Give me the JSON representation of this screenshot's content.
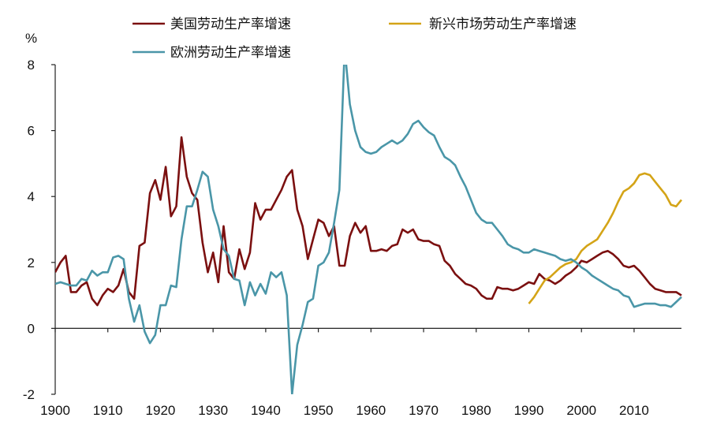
{
  "chart_data": {
    "type": "line",
    "ylabel": "%",
    "ylim": [
      -2,
      8
    ],
    "xlim": [
      1900,
      2019
    ],
    "yticks": [
      "-2",
      "0",
      "2",
      "4",
      "6",
      "8"
    ],
    "xticks": [
      "1900",
      "1910",
      "1920",
      "1930",
      "1940",
      "1950",
      "1960",
      "1970",
      "1980",
      "1990",
      "2000",
      "2010"
    ],
    "grid": false,
    "legend": "top",
    "series": [
      {
        "name": "美国劳动生产率增速",
        "color": "#7b1010",
        "x": [
          1900,
          1901,
          1902,
          1903,
          1904,
          1905,
          1906,
          1907,
          1908,
          1909,
          1910,
          1911,
          1912,
          1913,
          1914,
          1915,
          1916,
          1917,
          1918,
          1919,
          1920,
          1921,
          1922,
          1923,
          1924,
          1925,
          1926,
          1927,
          1928,
          1929,
          1930,
          1931,
          1932,
          1933,
          1934,
          1935,
          1936,
          1937,
          1938,
          1939,
          1940,
          1941,
          1942,
          1943,
          1944,
          1945,
          1946,
          1947,
          1948,
          1949,
          1950,
          1951,
          1952,
          1953,
          1954,
          1955,
          1956,
          1957,
          1958,
          1959,
          1960,
          1961,
          1962,
          1963,
          1964,
          1965,
          1966,
          1967,
          1968,
          1969,
          1970,
          1971,
          1972,
          1973,
          1974,
          1975,
          1976,
          1977,
          1978,
          1979,
          1980,
          1981,
          1982,
          1983,
          1984,
          1985,
          1986,
          1987,
          1988,
          1989,
          1990,
          1991,
          1992,
          1993,
          1994,
          1995,
          1996,
          1997,
          1998,
          1999,
          2000,
          2001,
          2002,
          2003,
          2004,
          2005,
          2006,
          2007,
          2008,
          2009,
          2010,
          2011,
          2012,
          2013,
          2014,
          2015,
          2016,
          2017,
          2018,
          2019
        ],
        "values": [
          1.7,
          2.0,
          2.2,
          1.1,
          1.1,
          1.3,
          1.4,
          0.9,
          0.7,
          1.0,
          1.2,
          1.1,
          1.3,
          1.8,
          1.1,
          0.9,
          2.5,
          2.6,
          4.1,
          4.5,
          3.9,
          4.9,
          3.4,
          3.7,
          5.8,
          4.6,
          4.1,
          3.9,
          2.6,
          1.7,
          2.3,
          1.4,
          3.1,
          1.7,
          1.5,
          2.4,
          1.8,
          2.3,
          3.8,
          3.3,
          3.6,
          3.6,
          3.9,
          4.2,
          4.6,
          4.8,
          3.6,
          3.1,
          2.1,
          2.7,
          3.3,
          3.2,
          2.8,
          3.1,
          1.9,
          1.9,
          2.8,
          3.2,
          2.9,
          3.1,
          2.35,
          2.35,
          2.4,
          2.35,
          2.5,
          2.55,
          3.0,
          2.9,
          3.0,
          2.7,
          2.65,
          2.65,
          2.55,
          2.5,
          2.05,
          1.9,
          1.65,
          1.5,
          1.35,
          1.3,
          1.2,
          1.0,
          0.9,
          0.9,
          1.25,
          1.2,
          1.2,
          1.15,
          1.2,
          1.3,
          1.4,
          1.35,
          1.65,
          1.5,
          1.45,
          1.35,
          1.45,
          1.6,
          1.7,
          1.85,
          2.05,
          2.0,
          2.1,
          2.2,
          2.3,
          2.35,
          2.25,
          2.1,
          1.9,
          1.85,
          1.9,
          1.75,
          1.55,
          1.35,
          1.2,
          1.15,
          1.1,
          1.1,
          1.1,
          1.0
        ]
      },
      {
        "name": "新兴市场劳动生产率增速",
        "color": "#d4a417",
        "x": [
          1990,
          1991,
          1992,
          1993,
          1994,
          1995,
          1996,
          1997,
          1998,
          1999,
          2000,
          2001,
          2002,
          2003,
          2004,
          2005,
          2006,
          2007,
          2008,
          2009,
          2010,
          2011,
          2012,
          2013,
          2014,
          2015,
          2016,
          2017,
          2018,
          2019
        ],
        "values": [
          0.75,
          0.95,
          1.2,
          1.45,
          1.55,
          1.7,
          1.85,
          1.95,
          2.0,
          2.1,
          2.35,
          2.5,
          2.6,
          2.7,
          2.95,
          3.2,
          3.5,
          3.85,
          4.15,
          4.25,
          4.4,
          4.65,
          4.7,
          4.65,
          4.45,
          4.25,
          4.05,
          3.75,
          3.7,
          3.9
        ]
      },
      {
        "name": "欧洲劳动生产率增速",
        "color": "#4a96a8",
        "x": [
          1900,
          1901,
          1902,
          1903,
          1904,
          1905,
          1906,
          1907,
          1908,
          1909,
          1910,
          1911,
          1912,
          1913,
          1914,
          1915,
          1916,
          1917,
          1918,
          1919,
          1920,
          1921,
          1922,
          1923,
          1924,
          1925,
          1926,
          1927,
          1928,
          1929,
          1930,
          1931,
          1932,
          1933,
          1934,
          1935,
          1936,
          1937,
          1938,
          1939,
          1940,
          1941,
          1942,
          1943,
          1944,
          1945,
          1946,
          1947,
          1948,
          1949,
          1950,
          1951,
          1952,
          1953,
          1954,
          1955,
          1956,
          1957,
          1958,
          1959,
          1960,
          1961,
          1962,
          1963,
          1964,
          1965,
          1966,
          1967,
          1968,
          1969,
          1970,
          1971,
          1972,
          1973,
          1974,
          1975,
          1976,
          1977,
          1978,
          1979,
          1980,
          1981,
          1982,
          1983,
          1984,
          1985,
          1986,
          1987,
          1988,
          1989,
          1990,
          1991,
          1992,
          1993,
          1994,
          1995,
          1996,
          1997,
          1998,
          1999,
          2000,
          2001,
          2002,
          2003,
          2004,
          2005,
          2006,
          2007,
          2008,
          2009,
          2010,
          2011,
          2012,
          2013,
          2014,
          2015,
          2016,
          2017,
          2018,
          2019
        ],
        "values": [
          1.35,
          1.4,
          1.35,
          1.3,
          1.3,
          1.5,
          1.45,
          1.75,
          1.6,
          1.7,
          1.7,
          2.15,
          2.2,
          2.1,
          0.9,
          0.2,
          0.7,
          -0.1,
          -0.45,
          -0.2,
          0.7,
          0.7,
          1.3,
          1.25,
          2.7,
          3.7,
          3.7,
          4.2,
          4.75,
          4.6,
          3.6,
          3.1,
          2.4,
          2.2,
          1.5,
          1.45,
          0.7,
          1.4,
          1.0,
          1.35,
          1.05,
          1.7,
          1.55,
          1.7,
          1.0,
          -2.0,
          -0.5,
          0.1,
          0.8,
          0.9,
          1.9,
          2.0,
          2.3,
          3.2,
          4.2,
          8.5,
          6.8,
          6.0,
          5.5,
          5.35,
          5.3,
          5.35,
          5.5,
          5.6,
          5.7,
          5.6,
          5.7,
          5.9,
          6.2,
          6.3,
          6.1,
          5.95,
          5.85,
          5.5,
          5.2,
          5.1,
          4.95,
          4.6,
          4.3,
          3.9,
          3.5,
          3.3,
          3.2,
          3.2,
          3.0,
          2.8,
          2.55,
          2.45,
          2.4,
          2.3,
          2.3,
          2.4,
          2.35,
          2.3,
          2.25,
          2.2,
          2.1,
          2.05,
          2.1,
          2.0,
          1.85,
          1.75,
          1.6,
          1.5,
          1.4,
          1.3,
          1.2,
          1.15,
          1.0,
          0.95,
          0.65,
          0.7,
          0.75,
          0.75,
          0.75,
          0.7,
          0.7,
          0.65,
          0.8,
          0.95
        ]
      }
    ]
  }
}
